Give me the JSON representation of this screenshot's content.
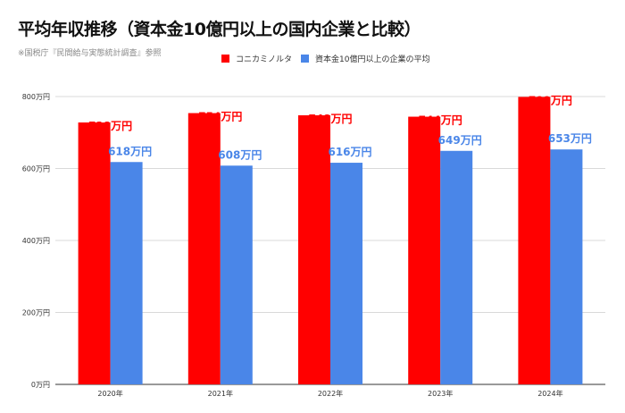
{
  "title": "平均年収推移（資本金10億円以上の国内企業と比較）",
  "source": "※国税庁『民間給与実態統計調査』参照",
  "colors": {
    "series1": "#ff0000",
    "series2": "#4a86e8",
    "grid": "#d9d9d9",
    "axis_text": "#333333"
  },
  "chart_data": {
    "type": "bar",
    "categories": [
      "2020年",
      "2021年",
      "2022年",
      "2023年",
      "2024年"
    ],
    "series": [
      {
        "name": "コニカミノルタ",
        "values": [
          728,
          754,
          748,
          744,
          799
        ],
        "labels": [
          "728万円",
          "754万円",
          "748万円",
          "744万円",
          "799万円"
        ]
      },
      {
        "name": "資本金10億円以上の企業の平均",
        "values": [
          618,
          608,
          616,
          649,
          653
        ],
        "labels": [
          "618万円",
          "608万円",
          "616万円",
          "649万円",
          "653万円"
        ]
      }
    ],
    "ylim": [
      0,
      800
    ],
    "yticks": [
      0,
      200,
      400,
      600,
      800
    ],
    "ytick_labels": [
      "0万円",
      "200万円",
      "400万円",
      "600万円",
      "800万円"
    ],
    "grid": true,
    "legend": "top"
  }
}
